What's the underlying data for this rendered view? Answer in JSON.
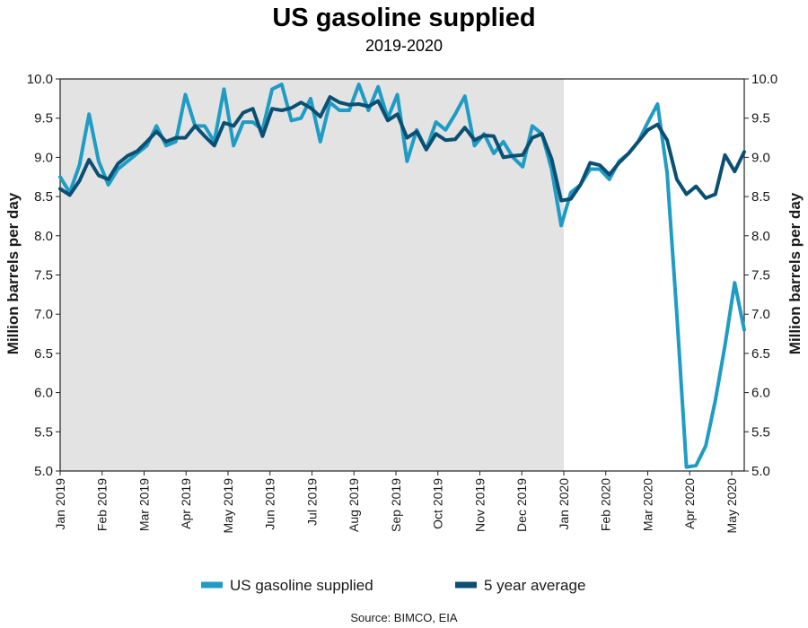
{
  "chart_data": {
    "type": "line",
    "title": "US gasoline supplied",
    "subtitle": "2019-2020",
    "ylabel_left": "Million barrels per day",
    "ylabel_right": "Million barrels per day",
    "ylim": [
      5.0,
      10.0
    ],
    "yticks": [
      "5.0",
      "5.5",
      "6.0",
      "6.5",
      "7.0",
      "7.5",
      "8.0",
      "8.5",
      "9.0",
      "9.5",
      "10.0"
    ],
    "xticks": [
      "Jan 2019",
      "Feb 2019",
      "Mar 2019",
      "Apr 2019",
      "May 2019",
      "Jun 2019",
      "Jul 2019",
      "Aug 2019",
      "Sep 2019",
      "Oct 2019",
      "Nov 2019",
      "Dec 2019",
      "Jan 2020",
      "Feb 2020",
      "Mar 2020",
      "Apr 2020",
      "May 2020"
    ],
    "shaded_range": [
      "Jan 2019",
      "Jan 2020"
    ],
    "grid": false,
    "legend": "bottom",
    "source": "Source: BIMCO, EIA",
    "series": [
      {
        "name": "US gasoline supplied",
        "color": "#1f9cc4",
        "values": [
          8.75,
          8.55,
          8.9,
          9.55,
          8.95,
          8.65,
          8.85,
          8.95,
          9.05,
          9.15,
          9.4,
          9.15,
          9.2,
          9.8,
          9.4,
          9.4,
          9.2,
          9.87,
          9.15,
          9.45,
          9.45,
          9.35,
          9.87,
          9.93,
          9.47,
          9.5,
          9.75,
          9.2,
          9.7,
          9.6,
          9.6,
          9.93,
          9.6,
          9.9,
          9.5,
          9.8,
          8.95,
          9.35,
          9.1,
          9.45,
          9.35,
          9.55,
          9.78,
          9.15,
          9.3,
          9.05,
          9.2,
          9.0,
          8.88,
          9.4,
          9.3,
          8.85,
          8.13,
          8.55,
          8.65,
          8.85,
          8.85,
          8.72,
          8.95,
          9.05,
          9.2,
          9.45,
          9.68,
          8.8,
          7.0,
          5.05,
          5.07,
          5.32,
          5.9,
          6.6,
          7.4,
          6.8
        ]
      },
      {
        "name": "5 year average",
        "color": "#0b4f73",
        "values": [
          8.6,
          8.52,
          8.7,
          8.97,
          8.77,
          8.72,
          8.92,
          9.02,
          9.08,
          9.2,
          9.33,
          9.2,
          9.25,
          9.25,
          9.4,
          9.27,
          9.15,
          9.44,
          9.4,
          9.57,
          9.62,
          9.27,
          9.62,
          9.6,
          9.63,
          9.7,
          9.63,
          9.52,
          9.77,
          9.7,
          9.67,
          9.68,
          9.65,
          9.72,
          9.47,
          9.55,
          9.25,
          9.33,
          9.1,
          9.3,
          9.22,
          9.23,
          9.38,
          9.22,
          9.28,
          9.27,
          9.0,
          9.02,
          9.03,
          9.25,
          9.3,
          8.98,
          8.45,
          8.47,
          8.65,
          8.93,
          8.9,
          8.78,
          8.93,
          9.05,
          9.2,
          9.35,
          9.42,
          9.22,
          8.72,
          8.53,
          8.63,
          8.48,
          8.53,
          9.03,
          8.82,
          9.07
        ]
      }
    ]
  }
}
